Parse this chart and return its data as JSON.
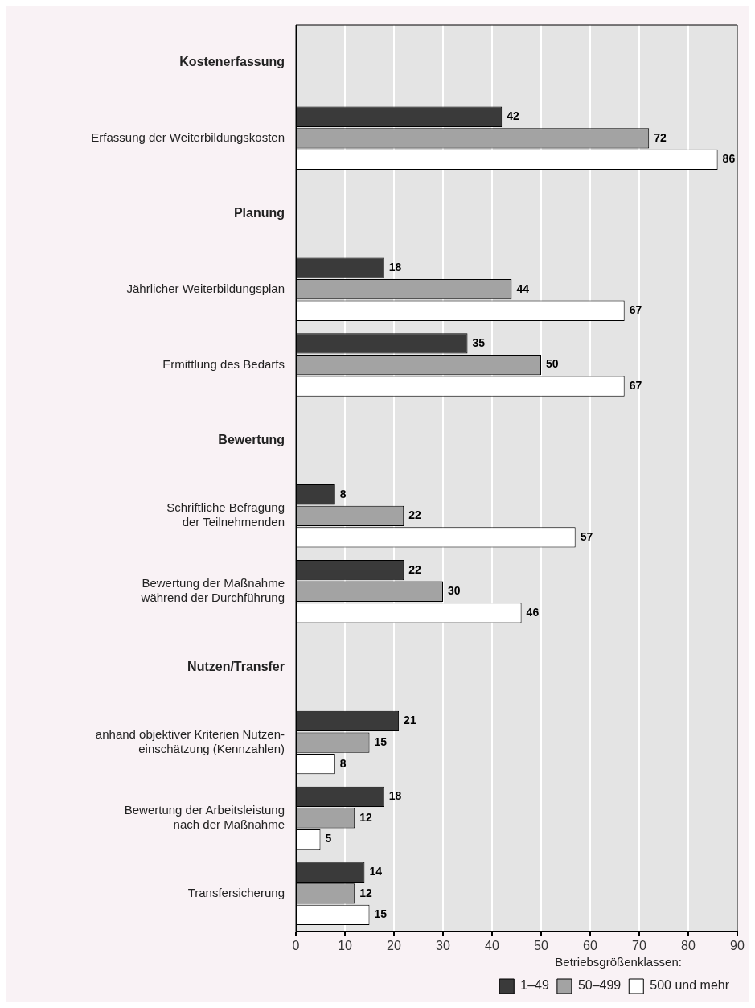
{
  "chart_data": {
    "type": "bar",
    "orientation": "horizontal",
    "categories": [
      "Kostenerfassung",
      "Erfassung der Weiterbildungskosten",
      "Planung",
      "Jährlicher Weiterbildungsplan",
      "Ermittlung des Bedarfs",
      "Bewertung",
      "Schriftliche Befragung\nder Teilnehmenden",
      "Bewertung der Maßnahme\nwährend der Durchführung",
      "Nutzen/Transfer",
      "anhand objektiver Kriterien Nutzen-\neinschätzung (Kennzahlen)",
      "Bewertung der Arbeitsleistung\nnach der Maßnahme",
      "Transfersicherung"
    ],
    "series": [
      {
        "name": "1–49",
        "color": "#3a3a3a",
        "values": [
          null,
          42,
          null,
          18,
          35,
          null,
          8,
          22,
          null,
          21,
          18,
          14
        ]
      },
      {
        "name": "50–499",
        "color": "#a3a3a3",
        "values": [
          null,
          72,
          null,
          44,
          50,
          null,
          22,
          30,
          null,
          15,
          12,
          12
        ]
      },
      {
        "name": "500 und mehr",
        "color": "#ffffff",
        "values": [
          null,
          86,
          null,
          67,
          67,
          null,
          57,
          46,
          null,
          8,
          5,
          15
        ]
      }
    ],
    "legend_title": "Betriebsgrößenklassen:",
    "legend": "bottom right",
    "xlim": [
      0,
      90
    ],
    "xticks": [
      0,
      10,
      20,
      30,
      40,
      50,
      60,
      70,
      80,
      90
    ],
    "grid": "x",
    "data_labels": true
  }
}
